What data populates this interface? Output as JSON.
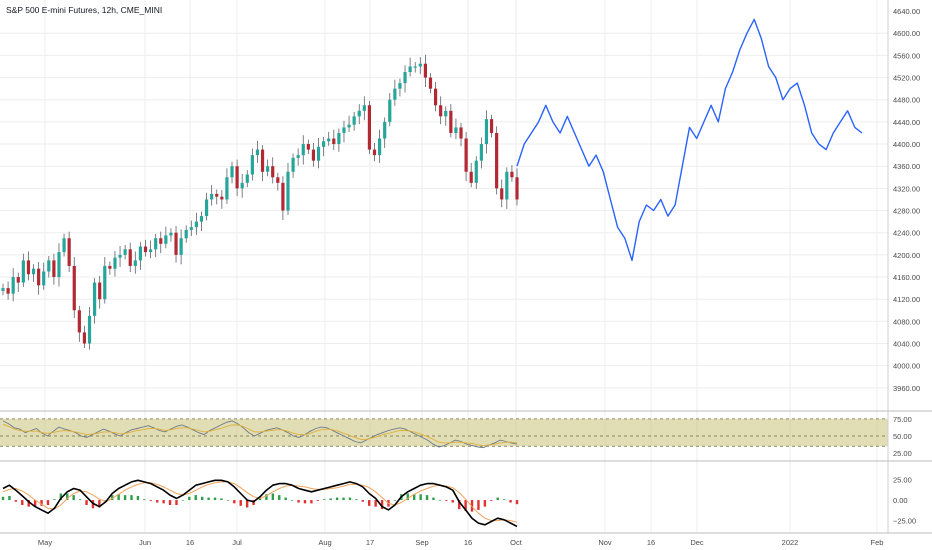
{
  "title": "S&P 500 E-mini Futures, 12h, CME_MINI",
  "colors": {
    "up": "#26a69a",
    "down": "#b22833",
    "wick": "#5d606b",
    "forecast": "#2962ff",
    "rsi_band": "#c9c27a",
    "rsi_line": "#6c7a8a",
    "rsi_ma": "#e0b03a",
    "macd_line": "#000000",
    "signal_line": "#f0a35a",
    "hist_pos": "#2e9e4a",
    "hist_neg": "#e03030",
    "grid": "#eeeeee"
  },
  "main_price_axis": {
    "labels": [
      "4600.00",
      "4560.00",
      "4520.00",
      "4480.00",
      "4440.00",
      "4400.00",
      "4360.00",
      "4320.00",
      "4280.00",
      "4240.00",
      "4200.00",
      "4160.00",
      "4120.00",
      "4080.00",
      "4040.00",
      "4000.00",
      "3960.00"
    ],
    "top_label": "4640.00"
  },
  "rsi_axis": {
    "labels": [
      "75.00",
      "50.00",
      "25.00"
    ]
  },
  "macd_axis": {
    "labels": [
      "25.00",
      "0.00",
      "−25.00"
    ]
  },
  "x_axis": {
    "labels": [
      "May",
      "Jun",
      "16",
      "Jul",
      "Aug",
      "17",
      "Sep",
      "16",
      "Oct",
      "Nov",
      "16",
      "Dec",
      "2022",
      "Feb"
    ]
  },
  "chart_data": [
    {
      "type": "line",
      "title": "S&P 500 E-mini Futures, 12h, CME_MINI",
      "series": [
        {
          "values": [
            4140,
            4130,
            4160,
            4150,
            4190,
            4165,
            4175,
            4145,
            4170,
            4190,
            4160,
            4205,
            4230,
            4180,
            4100,
            4060,
            4040,
            4090,
            4150,
            4120,
            4180,
            4175,
            4195,
            4200,
            4210,
            4180,
            4190,
            4215,
            4205,
            4210,
            4230,
            4220,
            4235,
            4240,
            4200,
            4230,
            4245,
            4250,
            4260,
            4270,
            4300,
            4310,
            4305,
            4300,
            4340,
            4360,
            4320,
            4330,
            4345,
            4380,
            4390,
            4350,
            4360,
            4340,
            4330,
            4280,
            4350,
            4375,
            4380,
            4400,
            4390,
            4370,
            4395,
            4405,
            4410,
            4400,
            4420,
            4430,
            4435,
            4450,
            4460,
            4470,
            4390,
            4380,
            4410,
            4440,
            4480,
            4500,
            4510,
            4530,
            4540,
            4540,
            4545,
            4520,
            4500,
            4470,
            4450,
            4460,
            4420,
            4430,
            4410,
            4350,
            4330,
            4370,
            4400,
            4445,
            4420,
            4320,
            4300,
            4350,
            4340,
            4300
          ],
          "ylim": [
            3920,
            4660
          ]
        },
        {
          "values": [
            4360,
            4400,
            4420,
            4440,
            4470,
            4440,
            4420,
            4450,
            4420,
            4390,
            4360,
            4380,
            4350,
            4300,
            4250,
            4230,
            4190,
            4260,
            4290,
            4280,
            4300,
            4270,
            4290,
            4360,
            4430,
            4410,
            4440,
            4470,
            4440,
            4500,
            4530,
            4570,
            4600,
            4625,
            4590,
            4540,
            4520,
            4480,
            4500,
            4510,
            4470,
            4420,
            4400,
            4390,
            4420,
            4440,
            4460,
            4430,
            4420
          ]
        }
      ]
    },
    {
      "type": "line",
      "ylim": [
        15,
        85
      ],
      "band": [
        35,
        75
      ],
      "series": [
        {
          "values": [
            72,
            68,
            62,
            60,
            55,
            58,
            61,
            54,
            50,
            57,
            63,
            60,
            58,
            55,
            50,
            48,
            52,
            56,
            60,
            57,
            53,
            50,
            55,
            59,
            61,
            63,
            65,
            62,
            58,
            56,
            60,
            64,
            66,
            63,
            59,
            55,
            52,
            58,
            62,
            66,
            70,
            72,
            68,
            62,
            55,
            50,
            54,
            58,
            60,
            62,
            59,
            55,
            50,
            48,
            52,
            57,
            61,
            63,
            62,
            58,
            54,
            50,
            46,
            42,
            40,
            44,
            48,
            52,
            55,
            58,
            60,
            62,
            60,
            56,
            52,
            48,
            44,
            38,
            34,
            36,
            40,
            44,
            42,
            38,
            36,
            34,
            33,
            37,
            40,
            44,
            42,
            40,
            38
          ]
        },
        {
          "values": [
            67,
            64,
            60,
            58,
            57,
            57,
            57,
            55,
            54,
            55,
            57,
            58,
            57,
            56,
            54,
            52,
            53,
            54,
            56,
            56,
            55,
            53,
            54,
            56,
            58,
            59,
            61,
            61,
            60,
            58,
            59,
            61,
            62,
            62,
            60,
            58,
            56,
            57,
            59,
            61,
            64,
            66,
            66,
            64,
            60,
            56,
            56,
            57,
            58,
            59,
            59,
            57,
            54,
            52,
            52,
            54,
            57,
            59,
            60,
            59,
            57,
            54,
            51,
            48,
            45,
            45,
            47,
            49,
            52,
            54,
            56,
            58,
            58,
            57,
            55,
            52,
            49,
            45,
            41,
            40,
            40,
            41,
            41,
            40,
            39,
            37,
            36,
            37,
            38,
            40,
            41,
            41,
            40
          ]
        }
      ]
    },
    {
      "type": "line",
      "ylim": [
        -40,
        45
      ],
      "series": [
        {
          "values": [
            14,
            18,
            12,
            5,
            -2,
            -8,
            -12,
            -16,
            -10,
            2,
            10,
            14,
            12,
            4,
            -4,
            -8,
            -2,
            8,
            14,
            18,
            22,
            24,
            22,
            20,
            16,
            12,
            6,
            2,
            6,
            12,
            18,
            20,
            22,
            24,
            24,
            22,
            16,
            8,
            0,
            -2,
            4,
            12,
            18,
            20,
            20,
            18,
            14,
            12,
            10,
            12,
            14,
            16,
            18,
            20,
            22,
            20,
            16,
            8,
            2,
            -8,
            -12,
            -6,
            4,
            10,
            14,
            18,
            20,
            20,
            18,
            16,
            12,
            -2,
            -12,
            -22,
            -28,
            -30,
            -26,
            -22,
            -24,
            -28,
            -32
          ]
        },
        {
          "values": [
            10,
            13,
            14,
            11,
            6,
            0,
            -5,
            -10,
            -11,
            -6,
            2,
            8,
            11,
            10,
            6,
            1,
            -2,
            2,
            7,
            12,
            16,
            19,
            21,
            21,
            19,
            16,
            12,
            8,
            6,
            8,
            12,
            16,
            19,
            21,
            22,
            22,
            20,
            15,
            9,
            4,
            2,
            5,
            10,
            14,
            17,
            18,
            17,
            16,
            14,
            13,
            13,
            14,
            15,
            17,
            19,
            19,
            18,
            15,
            10,
            3,
            -4,
            -6,
            -3,
            2,
            7,
            11,
            14,
            17,
            18,
            17,
            15,
            9,
            1,
            -8,
            -16,
            -22,
            -25,
            -25,
            -24,
            -25,
            -27
          ]
        },
        {
          "values": [
            4,
            5,
            -2,
            -6,
            -8,
            -8,
            -7,
            -6,
            1,
            8,
            8,
            6,
            1,
            -6,
            -10,
            -9,
            0,
            6,
            7,
            6,
            6,
            5,
            1,
            -1,
            -3,
            -4,
            -6,
            -6,
            0,
            4,
            6,
            4,
            3,
            3,
            2,
            0,
            -4,
            -7,
            -9,
            -6,
            2,
            7,
            8,
            6,
            3,
            0,
            -3,
            -4,
            -4,
            -1,
            1,
            2,
            3,
            3,
            3,
            1,
            -2,
            -7,
            -8,
            -11,
            -8,
            0,
            7,
            8,
            7,
            7,
            6,
            3,
            0,
            -1,
            -3,
            -11,
            -13,
            -14,
            -12,
            -8,
            -1,
            3,
            1,
            -3,
            -5
          ]
        }
      ]
    }
  ]
}
